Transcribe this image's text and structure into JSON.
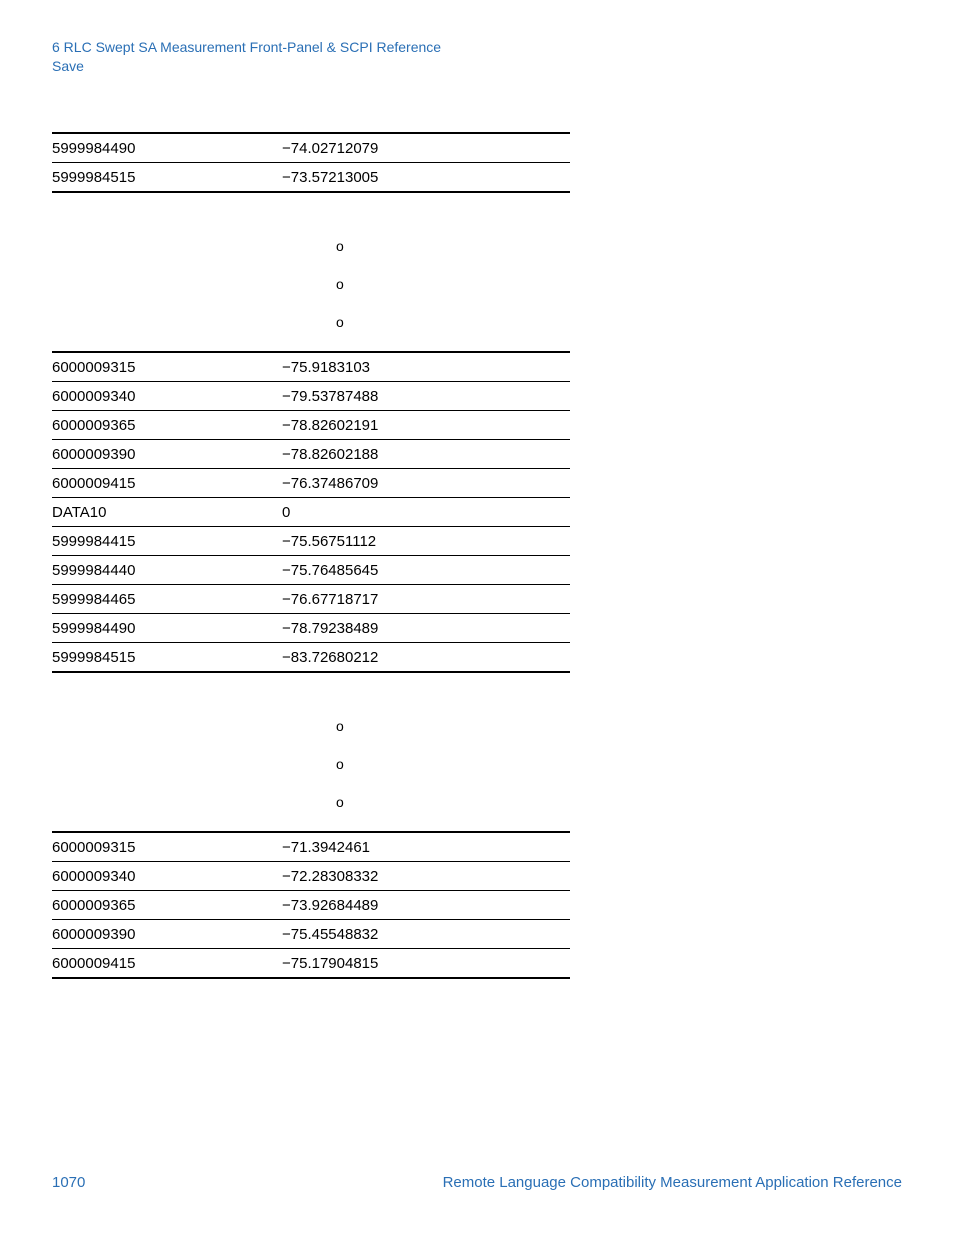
{
  "header": {
    "line1": "6  RLC Swept SA Measurement Front-Panel & SCPI Reference",
    "line2": "Save"
  },
  "oglyph": "o",
  "table1": {
    "rows": [
      {
        "c1": "5999984490",
        "c2": "−74.02712079"
      },
      {
        "c1": "5999984515",
        "c2": "−73.57213005"
      }
    ]
  },
  "table2": {
    "rows": [
      {
        "c1": "6000009315",
        "c2": "−75.9183103"
      },
      {
        "c1": "6000009340",
        "c2": "−79.53787488"
      },
      {
        "c1": "6000009365",
        "c2": "−78.82602191"
      },
      {
        "c1": "6000009390",
        "c2": "−78.82602188"
      },
      {
        "c1": "6000009415",
        "c2": "−76.37486709"
      },
      {
        "c1": "DATA10",
        "c2": "0"
      },
      {
        "c1": "5999984415",
        "c2": "−75.56751112"
      },
      {
        "c1": "5999984440",
        "c2": "−75.76485645"
      },
      {
        "c1": "5999984465",
        "c2": "−76.67718717"
      },
      {
        "c1": "5999984490",
        "c2": "−78.79238489"
      },
      {
        "c1": "5999984515",
        "c2": "−83.72680212"
      }
    ]
  },
  "table3": {
    "rows": [
      {
        "c1": "6000009315",
        "c2": "−71.3942461"
      },
      {
        "c1": "6000009340",
        "c2": "−72.28308332"
      },
      {
        "c1": "6000009365",
        "c2": "−73.92684489"
      },
      {
        "c1": "6000009390",
        "c2": "−75.45548832"
      },
      {
        "c1": "6000009415",
        "c2": "−75.17904815"
      }
    ]
  },
  "footer": {
    "page": "1070",
    "title": "Remote Language Compatibility Measurement Application Reference"
  },
  "colors": {
    "link_blue": "#2a6fb5",
    "text": "#000000",
    "background": "#ffffff"
  }
}
